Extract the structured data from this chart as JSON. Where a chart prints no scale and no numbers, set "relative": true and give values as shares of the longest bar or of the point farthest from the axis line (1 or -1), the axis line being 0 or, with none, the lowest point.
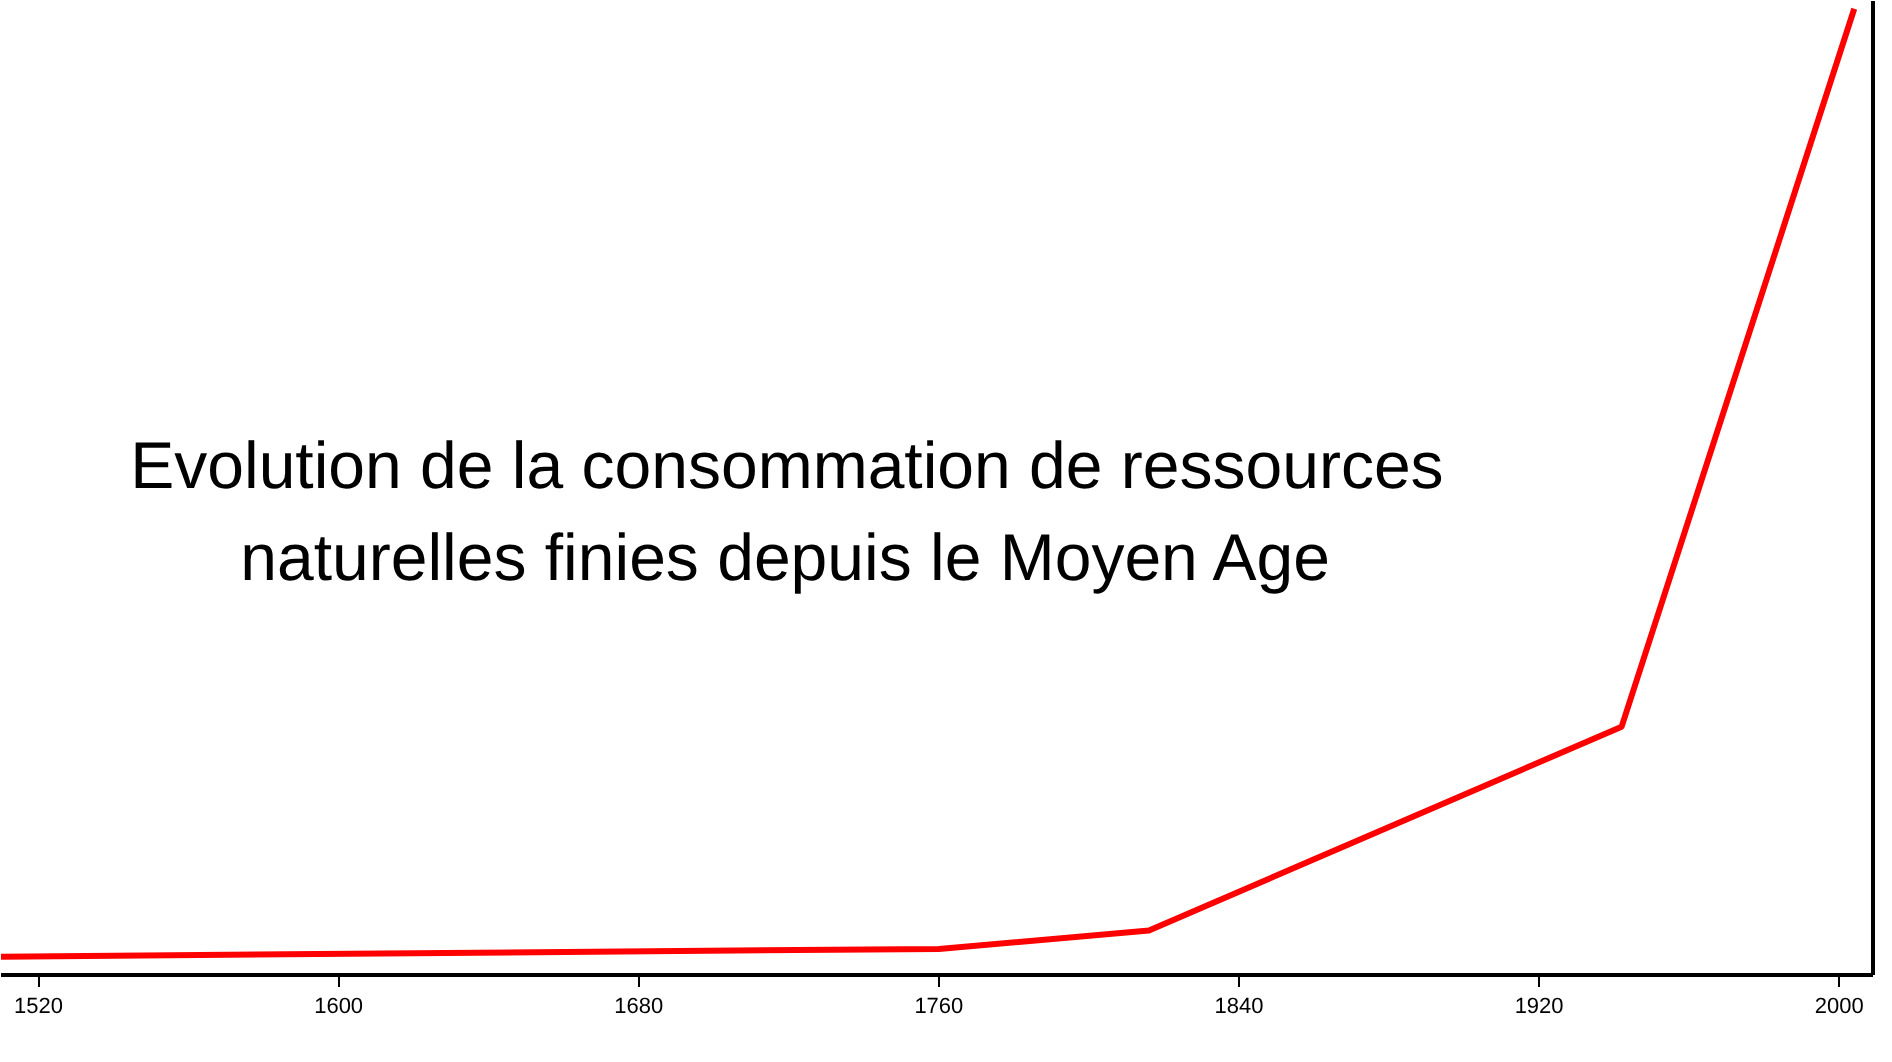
{
  "chart_data": {
    "type": "line",
    "title": "Evolution de la consommation de ressources naturelles finies depuis le Moyen Age",
    "relative": true,
    "x": [
      1510,
      1760,
      1816,
      1942,
      2004
    ],
    "series": [
      {
        "color": "#ff0000",
        "values": [
          0.019,
          0.027,
          0.046,
          0.257,
          1.0
        ]
      }
    ],
    "xlim": [
      1510,
      2009
    ],
    "xticks": [
      1520,
      1600,
      1680,
      1760,
      1840,
      1920,
      2000
    ],
    "grid": false,
    "marker": "none",
    "line_style": "solid"
  }
}
